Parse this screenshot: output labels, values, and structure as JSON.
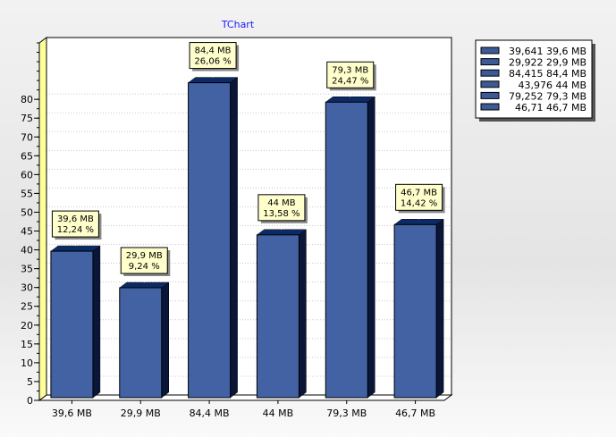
{
  "colors": {
    "bar_front": "#4262a3",
    "bar_top": "#0c2a66",
    "bar_side": "#0a1638",
    "title": "#1a1aff",
    "axis_left": "#ffff99",
    "mark_bg": "#ffffcc",
    "legend_swatch": "#3b5a96"
  },
  "chart_data": {
    "type": "bar",
    "title": "TChart",
    "xlabel": "",
    "ylabel": "",
    "categories": [
      "39,6 MB",
      "29,9 MB",
      "84,4 MB",
      "44 MB",
      "79,3 MB",
      "46,7 MB"
    ],
    "values": [
      39.641,
      29.922,
      84.415,
      43.976,
      79.252,
      46.71
    ],
    "data_labels": [
      [
        "39,6 MB",
        "12,24 %"
      ],
      [
        "29,9 MB",
        "9,24 %"
      ],
      [
        "84,4 MB",
        "26,06 %"
      ],
      [
        "44 MB",
        "13,58 %"
      ],
      [
        "79,3 MB",
        "24,47 %"
      ],
      [
        "46,7 MB",
        "14,42 %"
      ]
    ],
    "legend": [
      "39,641 39,6 MB",
      "29,922 29,9 MB",
      "84,415 84,4 MB",
      "43,976 44 MB",
      "79,252 79,3 MB",
      "46,71 46,7 MB"
    ],
    "legend_position": "top-right",
    "y_ticks": [
      0,
      5,
      10,
      15,
      20,
      25,
      30,
      35,
      40,
      45,
      50,
      55,
      60,
      65,
      70,
      75,
      80
    ],
    "ylim": [
      0,
      95
    ],
    "grid": true
  }
}
